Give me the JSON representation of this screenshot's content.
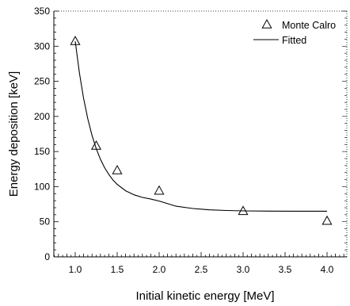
{
  "chart_data": {
    "type": "scatter",
    "title": "",
    "xlabel": "Initial kinetic energy [MeV]",
    "ylabel": "Energy deposition [keV]",
    "xlim": [
      0.75,
      4.2
    ],
    "ylim": [
      0,
      350
    ],
    "x_ticks": [
      1.0,
      1.5,
      2.0,
      2.5,
      3.0,
      3.5,
      4.0
    ],
    "x_tick_labels": [
      "1.0",
      "1.5",
      "2.0",
      "2.5",
      "3.0",
      "3.5",
      "4.0"
    ],
    "y_ticks": [
      0,
      50,
      100,
      150,
      200,
      250,
      300,
      350
    ],
    "y_tick_labels": [
      "0",
      "50",
      "100",
      "150",
      "200",
      "250",
      "300",
      "350"
    ],
    "grid": false,
    "legend_position": "top-right",
    "series": [
      {
        "name": "Monte Calro",
        "marker": "open-triangle",
        "x": [
          1.0,
          1.25,
          1.5,
          2.0,
          3.0,
          4.0
        ],
        "y": [
          307,
          158,
          123,
          94,
          65,
          51
        ]
      },
      {
        "name": "Fitted",
        "style": "line",
        "x": [
          1.0,
          1.05,
          1.1,
          1.15,
          1.2,
          1.25,
          1.3,
          1.35,
          1.4,
          1.45,
          1.5,
          1.6,
          1.7,
          1.8,
          1.9,
          2.0,
          2.2,
          2.4,
          2.6,
          2.8,
          3.0,
          3.3,
          3.6,
          4.0
        ],
        "y": [
          307,
          261.8,
          225.5,
          196.4,
          173.0,
          154.2,
          139.1,
          127.0,
          117.3,
          109.4,
          103.2,
          94.2,
          88.4,
          84.7,
          82.3,
          79.5,
          72.2,
          68.9,
          67.0,
          66.0,
          65.5,
          65.1,
          65.0,
          65.0
        ]
      }
    ]
  }
}
